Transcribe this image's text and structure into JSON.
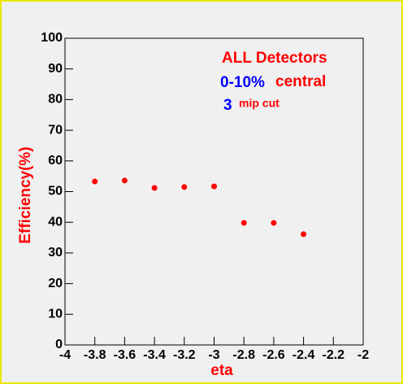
{
  "chart_data": {
    "type": "scatter",
    "x_label": "eta",
    "y_label": "Efficiency(%)",
    "annotations": [
      "ALL Detectors",
      "0-10%",
      "central",
      "3",
      "mip cut"
    ],
    "x": [
      -3.8,
      -3.6,
      -3.4,
      -3.2,
      -3.0,
      -2.8,
      -2.6,
      -2.4
    ],
    "values": [
      53.3,
      53.6,
      51.2,
      51.5,
      51.7,
      39.8,
      39.8,
      36.1
    ],
    "color": "#ff0000",
    "xlim": [
      -4,
      -2
    ],
    "xticks": [
      -4,
      -3.8,
      -3.6,
      -3.4,
      -3.2,
      -3,
      -2.8,
      -2.6,
      -2.4,
      -2.2,
      -2
    ],
    "ylim": [
      0,
      100
    ],
    "yticks": [
      0,
      10,
      20,
      30,
      40,
      50,
      60,
      70,
      80,
      90,
      100
    ],
    "grid": false
  }
}
